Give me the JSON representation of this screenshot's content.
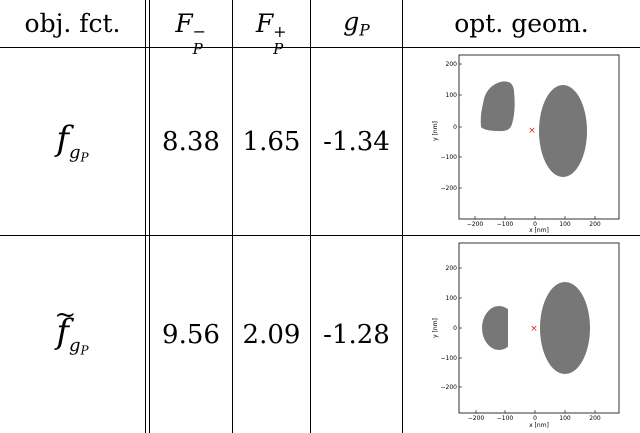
{
  "table": {
    "headers": {
      "objective": "obj. fct.",
      "fminus": {
        "base": "F",
        "sub": "P",
        "sup": "−"
      },
      "fplus": {
        "base": "F",
        "sub": "P",
        "sup": "+"
      },
      "gp": {
        "base": "g",
        "sub": "P"
      },
      "geom": "opt. geom."
    },
    "rows": [
      {
        "objective": {
          "base": "f",
          "sub": "g",
          "subsub": "P",
          "tilde": ""
        },
        "fminus": "8.38",
        "fplus": "1.65",
        "gp": "-1.34"
      },
      {
        "objective": {
          "base": "f",
          "sub": "g",
          "subsub": "P",
          "tilde": "~"
        },
        "fminus": "9.56",
        "fplus": "2.09",
        "gp": "-1.28"
      }
    ]
  },
  "plots": {
    "xlabel": "x [nm]",
    "ylabel": "y [nm]",
    "xticks": [
      "−200",
      "−100",
      "0",
      "100",
      "200"
    ],
    "yticks": [
      "200",
      "100",
      "0",
      "−100",
      "−200"
    ],
    "shape_color": "#777777",
    "marker_color": "#e02020"
  }
}
